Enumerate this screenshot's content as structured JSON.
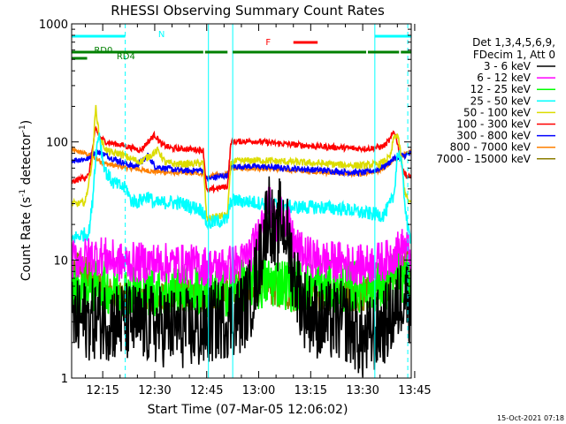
{
  "chart_data": {
    "type": "line",
    "title": "RHESSI Observing Summary Count Rates",
    "xlabel": "Start Time (07-Mar-05 12:06:02)",
    "ylabel_main": "Count Rate (s",
    "ylabel_sup1": "-1",
    "ylabel_mid": " detector",
    "ylabel_sup2": "-1",
    "ylabel_end": ")",
    "ylabel": "Count Rate (s^-1 detector^-1)",
    "yscale": "log",
    "xlim": [
      6.03,
      104.0
    ],
    "ylim": [
      1,
      1000
    ],
    "x_unit": "minutes since 12:00",
    "x_ticks": [
      {
        "v": 15,
        "label": "12:15"
      },
      {
        "v": 30,
        "label": "12:30"
      },
      {
        "v": 45,
        "label": "12:45"
      },
      {
        "v": 60,
        "label": "13:00"
      },
      {
        "v": 75,
        "label": "13:15"
      },
      {
        "v": 90,
        "label": "13:30"
      },
      {
        "v": 105,
        "label": "13:45"
      }
    ],
    "y_ticks": [
      {
        "v": 1,
        "label": "1"
      },
      {
        "v": 10,
        "label": "10"
      },
      {
        "v": 100,
        "label": "100"
      },
      {
        "v": 1000,
        "label": "1000"
      }
    ],
    "legend_header": [
      "Det 1,3,4,5,6,9,",
      "FDecim 1, Att 0"
    ],
    "legend_position": "right",
    "series": [
      {
        "name": "3 - 6 keV",
        "color": "#000000",
        "noise": 0.7,
        "pts": [
          [
            6,
            3
          ],
          [
            14,
            3.2
          ],
          [
            20,
            3
          ],
          [
            30,
            2.8
          ],
          [
            44,
            2.5
          ],
          [
            47,
            3
          ],
          [
            55,
            3.5
          ],
          [
            58,
            5
          ],
          [
            60,
            9
          ],
          [
            62,
            20
          ],
          [
            63,
            28
          ],
          [
            65,
            12
          ],
          [
            66,
            23
          ],
          [
            68,
            18
          ],
          [
            70,
            8
          ],
          [
            73,
            4
          ],
          [
            78,
            3
          ],
          [
            85,
            3
          ],
          [
            88,
            2.5
          ],
          [
            90,
            2
          ],
          [
            97,
            3
          ],
          [
            100,
            4
          ],
          [
            102,
            6
          ],
          [
            104,
            4
          ]
        ]
      },
      {
        "name": "6 - 12 keV",
        "color": "#ff00ff",
        "noise": 0.35,
        "pts": [
          [
            6,
            10
          ],
          [
            14,
            11
          ],
          [
            20,
            9.5
          ],
          [
            30,
            9.5
          ],
          [
            44,
            9
          ],
          [
            47,
            8.5
          ],
          [
            55,
            9.5
          ],
          [
            58,
            12
          ],
          [
            60,
            16
          ],
          [
            62,
            28
          ],
          [
            63,
            30
          ],
          [
            65,
            18
          ],
          [
            66,
            26
          ],
          [
            68,
            22
          ],
          [
            70,
            14
          ],
          [
            73,
            11
          ],
          [
            78,
            10
          ],
          [
            85,
            9.5
          ],
          [
            90,
            9
          ],
          [
            97,
            10
          ],
          [
            100,
            12
          ],
          [
            102,
            13
          ],
          [
            104,
            11
          ]
        ]
      },
      {
        "name": "12 - 25 keV",
        "color": "#00ff00",
        "noise": 0.45,
        "pts": [
          [
            6,
            5.5
          ],
          [
            14,
            6
          ],
          [
            20,
            5.5
          ],
          [
            30,
            5.5
          ],
          [
            44,
            5.5
          ],
          [
            47,
            5
          ],
          [
            55,
            6
          ],
          [
            58,
            6.5
          ],
          [
            60,
            6
          ],
          [
            62,
            6.5
          ],
          [
            66,
            6.5
          ],
          [
            70,
            6
          ],
          [
            78,
            6
          ],
          [
            85,
            6
          ],
          [
            90,
            6
          ],
          [
            97,
            6
          ],
          [
            100,
            8
          ],
          [
            102,
            7
          ],
          [
            104,
            6
          ]
        ]
      },
      {
        "name": "25 - 50 keV",
        "color": "#00ffff",
        "noise": 0.12,
        "pts": [
          [
            6,
            15
          ],
          [
            8,
            16
          ],
          [
            11,
            17
          ],
          [
            12,
            30
          ],
          [
            13,
            80
          ],
          [
            14,
            120
          ],
          [
            15,
            70
          ],
          [
            16,
            55
          ],
          [
            18,
            45
          ],
          [
            20,
            42
          ],
          [
            22,
            40
          ],
          [
            23,
            32
          ],
          [
            25,
            31
          ],
          [
            28,
            35
          ],
          [
            30,
            30
          ],
          [
            34,
            31
          ],
          [
            38,
            30
          ],
          [
            41,
            28
          ],
          [
            43,
            27
          ],
          [
            44,
            26
          ],
          [
            45,
            20
          ],
          [
            47,
            21
          ],
          [
            51,
            22
          ],
          [
            52,
            32
          ],
          [
            58,
            31
          ],
          [
            62,
            30
          ],
          [
            70,
            28
          ],
          [
            78,
            28
          ],
          [
            85,
            27
          ],
          [
            90,
            25
          ],
          [
            96,
            24
          ],
          [
            98,
            30
          ],
          [
            99,
            35
          ],
          [
            100,
            80
          ],
          [
            101,
            75
          ],
          [
            102,
            35
          ],
          [
            103,
            18
          ],
          [
            104,
            15
          ]
        ]
      },
      {
        "name": "50 - 100 keV",
        "color": "#dcdc00",
        "noise": 0.06,
        "pts": [
          [
            6,
            30
          ],
          [
            8,
            30
          ],
          [
            10,
            31
          ],
          [
            12,
            70
          ],
          [
            13,
            200
          ],
          [
            14,
            110
          ],
          [
            16,
            85
          ],
          [
            18,
            80
          ],
          [
            20,
            80
          ],
          [
            23,
            72
          ],
          [
            26,
            68
          ],
          [
            29,
            78
          ],
          [
            31,
            85
          ],
          [
            33,
            67
          ],
          [
            36,
            65
          ],
          [
            40,
            65
          ],
          [
            44,
            66
          ],
          [
            45,
            22
          ],
          [
            47,
            23
          ],
          [
            51,
            24
          ],
          [
            52,
            68
          ],
          [
            60,
            70
          ],
          [
            68,
            68
          ],
          [
            76,
            66
          ],
          [
            84,
            64
          ],
          [
            90,
            63
          ],
          [
            95,
            65
          ],
          [
            98,
            75
          ],
          [
            99,
            110
          ],
          [
            100,
            115
          ],
          [
            101,
            80
          ],
          [
            102,
            40
          ],
          [
            103,
            32
          ],
          [
            104,
            30
          ]
        ]
      },
      {
        "name": "100 - 300 keV",
        "color": "#ff0000",
        "noise": 0.05,
        "pts": [
          [
            6,
            45
          ],
          [
            8,
            48
          ],
          [
            11,
            52
          ],
          [
            12,
            85
          ],
          [
            13,
            130
          ],
          [
            14,
            110
          ],
          [
            16,
            100
          ],
          [
            18,
            97
          ],
          [
            20,
            95
          ],
          [
            23,
            90
          ],
          [
            26,
            85
          ],
          [
            28,
            100
          ],
          [
            30,
            115
          ],
          [
            32,
            95
          ],
          [
            35,
            88
          ],
          [
            40,
            87
          ],
          [
            44,
            85
          ],
          [
            45,
            38
          ],
          [
            47,
            40
          ],
          [
            51,
            42
          ],
          [
            52,
            100
          ],
          [
            58,
            102
          ],
          [
            64,
            98
          ],
          [
            70,
            95
          ],
          [
            76,
            92
          ],
          [
            82,
            90
          ],
          [
            88,
            88
          ],
          [
            92,
            88
          ],
          [
            96,
            92
          ],
          [
            98,
            105
          ],
          [
            99,
            125
          ],
          [
            100,
            100
          ],
          [
            101,
            70
          ],
          [
            102,
            55
          ],
          [
            103,
            50
          ],
          [
            104,
            52
          ]
        ]
      },
      {
        "name": "300 - 800 keV",
        "color": "#0000ff",
        "noise": 0.05,
        "pts": [
          [
            6,
            70
          ],
          [
            11,
            72
          ],
          [
            12,
            80
          ],
          [
            14,
            82
          ],
          [
            18,
            72
          ],
          [
            22,
            65
          ],
          [
            24,
            62
          ],
          [
            27,
            70
          ],
          [
            28,
            78
          ],
          [
            30,
            62
          ],
          [
            36,
            58
          ],
          [
            40,
            57
          ],
          [
            44,
            58
          ],
          [
            45,
            48
          ],
          [
            47,
            50
          ],
          [
            51,
            52
          ],
          [
            52,
            62
          ],
          [
            60,
            62
          ],
          [
            68,
            60
          ],
          [
            76,
            58
          ],
          [
            84,
            56
          ],
          [
            90,
            55
          ],
          [
            94,
            58
          ],
          [
            97,
            65
          ],
          [
            99,
            72
          ],
          [
            101,
            76
          ],
          [
            103,
            78
          ],
          [
            104,
            80
          ]
        ]
      },
      {
        "name": "800 - 7000 keV",
        "color": "#ff8000",
        "noise": 0.04,
        "pts": [
          [
            6,
            85
          ],
          [
            10,
            80
          ],
          [
            12,
            75
          ],
          [
            16,
            65
          ],
          [
            20,
            62
          ],
          [
            26,
            58
          ],
          [
            30,
            56
          ],
          [
            36,
            55
          ],
          [
            44,
            54
          ],
          [
            45,
            50
          ],
          [
            47,
            52
          ],
          [
            51,
            53
          ],
          [
            52,
            60
          ],
          [
            60,
            60
          ],
          [
            68,
            58
          ],
          [
            76,
            56
          ],
          [
            84,
            54
          ],
          [
            90,
            53
          ],
          [
            94,
            56
          ],
          [
            97,
            62
          ],
          [
            99,
            70
          ],
          [
            101,
            75
          ],
          [
            103,
            80
          ],
          [
            104,
            82
          ]
        ]
      },
      {
        "name": "7000 - 15000 keV",
        "color": "#8b7d00",
        "noise": 0.28,
        "pts": [
          [
            6,
            9
          ],
          [
            10,
            8
          ],
          [
            14,
            6
          ],
          [
            18,
            5
          ],
          [
            22,
            4.5
          ],
          [
            28,
            4.5
          ],
          [
            36,
            5
          ],
          [
            44,
            5
          ],
          [
            47,
            5
          ],
          [
            55,
            6
          ],
          [
            62,
            6
          ],
          [
            70,
            5
          ],
          [
            78,
            5
          ],
          [
            85,
            5
          ],
          [
            90,
            5
          ],
          [
            97,
            6
          ],
          [
            100,
            8
          ],
          [
            102,
            10
          ],
          [
            104,
            9
          ]
        ]
      }
    ],
    "state_bars": [
      {
        "label": "N",
        "color": "#00ffff",
        "row": "top",
        "label_at": 31,
        "segments": [
          [
            6.03,
            21.5
          ],
          [
            93.5,
            104.0
          ]
        ]
      },
      {
        "label": "F",
        "color": "#ff0000",
        "row": "flare",
        "label_at": 62,
        "segments": [
          [
            70.0,
            77.0
          ]
        ]
      },
      {
        "label": "RD0",
        "color": "#008000",
        "row": "rd0",
        "label_at": 12.5,
        "segments": [
          [
            6.03,
            44.0
          ],
          [
            44.5,
            51.0
          ],
          [
            52.5,
            91.0
          ],
          [
            91.5,
            100.5
          ],
          [
            101.0,
            104.0
          ]
        ]
      },
      {
        "label": "RD4",
        "color": "#008000",
        "row": "rd4",
        "label_at": 19,
        "segments": [
          [
            6.03,
            10.5
          ]
        ]
      }
    ],
    "vlines_solid": [
      6.03,
      45.5,
      52.5,
      93.5
    ],
    "vlines_dashed": [
      21.5,
      103.0
    ],
    "vline_color": "#00ffff",
    "timestamp": "15-Oct-2021 07:18"
  }
}
